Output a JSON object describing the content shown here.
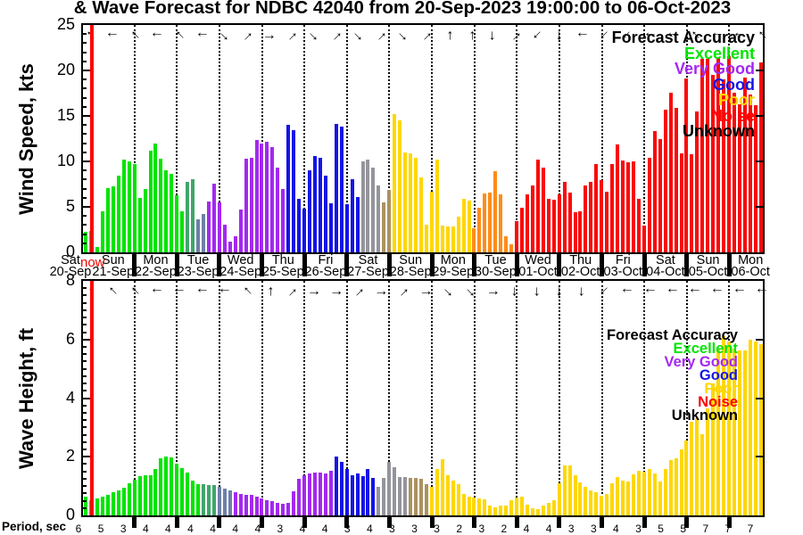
{
  "title": "& Wave Forecast for NDBC 42040 from 20-Sep-2023 19:00:00 to 06-Oct-2023",
  "now_label": "now",
  "period_label": "Period, sec",
  "legend": {
    "title": "Forecast Accuracy",
    "entries": [
      {
        "label": "Excellent",
        "color": "#00e400"
      },
      {
        "label": "Very Good",
        "color": "#a428f0"
      },
      {
        "label": "Good",
        "color": "#1414e6"
      },
      {
        "label": "Poor",
        "color": "#ffd700"
      },
      {
        "label": "Noise",
        "color": "#ff0000"
      },
      {
        "label": "Unknown",
        "color": "#000000"
      }
    ]
  },
  "palette": {
    "g": "#00e400",
    "t": "#3fa66a",
    "s": "#6e7fa8",
    "p": "#a428f0",
    "b": "#1414e6",
    "s2": "#94949c",
    "k": "#ab9260",
    "y": "#ffd700",
    "o": "#ff8c1a",
    "r": "#fa0a0a"
  },
  "days": [
    {
      "weekday": "Sat",
      "date": "20-Sep"
    },
    {
      "weekday": "Sun",
      "date": "21-Sep"
    },
    {
      "weekday": "Mon",
      "date": "22-Sep"
    },
    {
      "weekday": "Tue",
      "date": "23-Sep"
    },
    {
      "weekday": "Wed",
      "date": "24-Sep"
    },
    {
      "weekday": "Thu",
      "date": "25-Sep"
    },
    {
      "weekday": "Fri",
      "date": "26-Sep"
    },
    {
      "weekday": "Sat",
      "date": "27-Sep"
    },
    {
      "weekday": "Sun",
      "date": "28-Sep"
    },
    {
      "weekday": "Mon",
      "date": "29-Sep"
    },
    {
      "weekday": "Tue",
      "date": "30-Sep"
    },
    {
      "weekday": "Wed",
      "date": "01-Oct"
    },
    {
      "weekday": "Thu",
      "date": "02-Oct"
    },
    {
      "weekday": "Fri",
      "date": "03-Oct"
    },
    {
      "weekday": "Sat",
      "date": "04-Oct"
    },
    {
      "weekday": "Sun",
      "date": "05-Oct"
    },
    {
      "weekday": "Mon",
      "date": "06-Oct"
    }
  ],
  "periods": [
    6,
    5,
    3,
    4,
    4,
    4,
    4,
    4,
    4,
    3,
    4,
    4,
    3,
    4,
    3,
    3,
    3,
    2,
    3,
    2,
    4,
    4,
    3,
    3,
    4,
    3,
    5,
    5,
    7,
    7,
    7
  ],
  "chart_data": [
    {
      "type": "bar",
      "name": "wind",
      "ylabel": "Wind Speed, kts",
      "ylim": [
        0,
        25
      ],
      "yticks": [
        0,
        5,
        10,
        15,
        20,
        25
      ],
      "yminor": 1,
      "x_start": "20-Sep-2023 19:00",
      "step_hours": 3,
      "grid": "day-dotted",
      "legend_position": "top-right",
      "lead_values": [
        2.3,
        2.4
      ],
      "lead_color": "g",
      "values": [
        0.6,
        4.5,
        7.1,
        7.3,
        8.4,
        10.2,
        10.0,
        9.7,
        6.0,
        7.0,
        11.2,
        12.0,
        10.3,
        9.0,
        8.6,
        6.3,
        4.5,
        7.7,
        8.0,
        3.6,
        4.2,
        5.6,
        7.5,
        5.5,
        3.0,
        1.2,
        1.8,
        4.7,
        10.3,
        10.4,
        12.4,
        12.0,
        12.2,
        11.6,
        9.3,
        7.0,
        14.0,
        13.4,
        5.9,
        4.8,
        9.0,
        10.6,
        10.4,
        8.4,
        5.4,
        14.1,
        13.8,
        5.3,
        8.0,
        6.1,
        10.0,
        10.2,
        9.3,
        7.4,
        5.5,
        6.9,
        15.2,
        14.5,
        11.0,
        10.9,
        10.4,
        8.2,
        3.0,
        6.7,
        10.2,
        2.9,
        2.8,
        2.8,
        3.9,
        5.9,
        5.7,
        2.6,
        4.9,
        6.5,
        6.6,
        8.9,
        6.4,
        1.8,
        0.9,
        3.4,
        4.9,
        6.4,
        7.4,
        10.2,
        9.3,
        5.9,
        5.8,
        6.4,
        7.7,
        6.6,
        4.4,
        4.5,
        7.4,
        7.7,
        9.7,
        7.9,
        6.7,
        9.7,
        11.9,
        10.1,
        9.9,
        10.0,
        5.9,
        2.9,
        10.4,
        13.3,
        12.5,
        15.7,
        17.5,
        15.9,
        10.9,
        19.1,
        10.8,
        15.5,
        21.3,
        21.3,
        19.5,
        21.4,
        19.0,
        21.6,
        17.5,
        16.3,
        19.2,
        17.4,
        16.2,
        20.9
      ],
      "color_runs": [
        [
          "g",
          17
        ],
        [
          "t",
          2
        ],
        [
          "s",
          2
        ],
        [
          "p",
          15
        ],
        [
          "b",
          14
        ],
        [
          "s2",
          4
        ],
        [
          "k",
          2
        ],
        [
          "y",
          15
        ],
        [
          "o",
          8
        ],
        [
          "r",
          47
        ]
      ],
      "arrows": [
        "nw",
        "w",
        "nw",
        "w",
        "nw",
        "w",
        "se",
        "ne",
        "e",
        "ne",
        "se",
        "ne",
        "se",
        "ne",
        "se",
        "ne",
        "n",
        "n",
        "s",
        "ne",
        "sw",
        "s",
        "w",
        "sw",
        "sw",
        "w",
        "w",
        "nw",
        "w",
        "w",
        "nw"
      ]
    },
    {
      "type": "bar",
      "name": "wave",
      "ylabel": "Wave Height, ft",
      "ylim": [
        0,
        8
      ],
      "yticks": [
        0,
        2,
        4,
        6,
        8
      ],
      "yminor": 0.25,
      "x_start": "20-Sep-2023 19:00",
      "step_hours": 3,
      "grid": "day-dotted",
      "legend_position": "top-right",
      "lead_values": [
        0.63,
        0.53
      ],
      "lead_color": "g",
      "values": [
        0.58,
        0.63,
        0.69,
        0.79,
        0.86,
        0.94,
        1.09,
        1.22,
        1.35,
        1.37,
        1.37,
        1.57,
        1.96,
        2.0,
        1.98,
        1.76,
        1.6,
        1.47,
        1.2,
        1.07,
        1.05,
        1.04,
        1.02,
        0.96,
        0.91,
        0.86,
        0.79,
        0.73,
        0.69,
        0.69,
        0.63,
        0.58,
        0.53,
        0.48,
        0.44,
        0.41,
        0.44,
        0.81,
        1.24,
        1.37,
        1.44,
        1.47,
        1.47,
        1.44,
        1.52,
        2.0,
        1.83,
        1.59,
        1.37,
        1.42,
        1.35,
        1.57,
        1.29,
        0.98,
        1.29,
        1.81,
        1.64,
        1.32,
        1.3,
        1.29,
        1.27,
        1.25,
        1.07,
        0.96,
        1.59,
        1.91,
        1.37,
        1.2,
        1.07,
        0.73,
        0.63,
        0.61,
        0.58,
        0.56,
        0.33,
        0.27,
        0.32,
        0.33,
        0.51,
        0.61,
        0.64,
        0.38,
        0.25,
        0.2,
        0.33,
        0.44,
        0.53,
        1.09,
        1.71,
        1.71,
        1.37,
        1.14,
        0.98,
        0.86,
        0.79,
        0.68,
        0.73,
        1.09,
        1.3,
        1.2,
        1.15,
        1.39,
        1.52,
        1.49,
        1.59,
        1.42,
        1.15,
        1.57,
        1.9,
        1.95,
        2.25,
        2.54,
        3.2,
        3.33,
        2.76,
        3.65,
        4.49,
        5.66,
        6.1,
        5.94,
        5.7,
        5.63,
        5.63,
        5.99,
        5.94,
        5.85
      ],
      "color_runs": [
        [
          "g",
          20
        ],
        [
          "t",
          3
        ],
        [
          "s",
          3
        ],
        [
          "p",
          19
        ],
        [
          "b",
          8
        ],
        [
          "s2",
          6
        ],
        [
          "k",
          4
        ],
        [
          "y",
          63
        ]
      ],
      "arrows": [
        "n",
        "nw",
        "nw",
        "w",
        "w",
        "w",
        "w",
        "nw",
        "n",
        "ne",
        "e",
        "e",
        "ne",
        "e",
        "ne",
        "e",
        "se",
        "se",
        "e",
        "s",
        "s",
        "s",
        "s",
        "sw",
        "w",
        "w",
        "w",
        "w",
        "w",
        "w",
        "w"
      ]
    }
  ]
}
